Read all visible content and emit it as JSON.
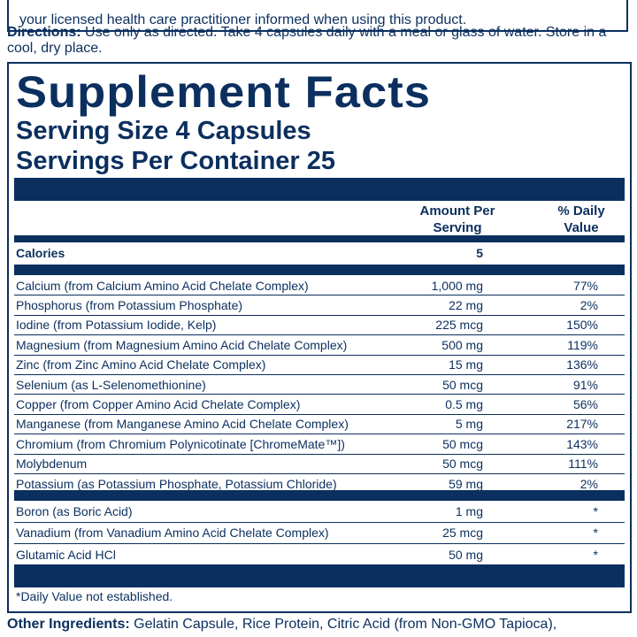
{
  "warning": "your licensed health care practitioner informed when using this product.",
  "directions": {
    "label": "Directions:",
    "text": " Use only as directed. Take 4 capsules daily with a meal or glass of water. Store in a cool, dry place."
  },
  "facts": {
    "title": "Supplement Facts",
    "serving_size": "Serving Size 4 Capsules",
    "servings_per_container": "Servings Per Container 25",
    "col_amount": "Amount Per Serving",
    "col_dv": "% Daily Value",
    "calories": {
      "name": "Calories",
      "amount": "5"
    },
    "rows": [
      {
        "name": "Calcium (from Calcium Amino Acid Chelate Complex)",
        "amount": "1,000 mg",
        "dv": "77%"
      },
      {
        "name": "Phosphorus (from Potassium Phosphate)",
        "amount": "22 mg",
        "dv": "2%"
      },
      {
        "name": "Iodine (from Potassium Iodide, Kelp)",
        "amount": "225 mcg",
        "dv": "150%"
      },
      {
        "name": "Magnesium (from Magnesium Amino Acid Chelate Complex)",
        "amount": "500 mg",
        "dv": "119%"
      },
      {
        "name": "Zinc (from Zinc Amino Acid Chelate Complex)",
        "amount": "15 mg",
        "dv": "136%"
      },
      {
        "name": "Selenium (as L-Selenomethionine)",
        "amount": "50 mcg",
        "dv": "91%"
      },
      {
        "name": "Copper (from Copper Amino Acid Chelate Complex)",
        "amount": "0.5 mg",
        "dv": "56%"
      },
      {
        "name": "Manganese (from Manganese Amino Acid Chelate Complex)",
        "amount": "5 mg",
        "dv": "217%"
      },
      {
        "name": "Chromium (from Chromium Polynicotinate [ChromeMate™])",
        "amount": "50 mcg",
        "dv": "143%"
      },
      {
        "name": "Molybdenum",
        "amount": "50 mcg",
        "dv": "111%"
      },
      {
        "name": "Potassium (as Potassium Phosphate, Potassium Chloride)",
        "amount": "59 mg",
        "dv": "2%"
      }
    ],
    "rows2": [
      {
        "name": "Boron (as Boric Acid)",
        "amount": "1 mg",
        "dv": "*"
      },
      {
        "name": "Vanadium (from Vanadium Amino Acid Chelate Complex)",
        "amount": "25 mcg",
        "dv": "*"
      },
      {
        "name": "Glutamic Acid HCl",
        "amount": "50 mg",
        "dv": "*"
      }
    ],
    "footnote": "*Daily Value not established."
  },
  "other": {
    "label": "Other Ingredients:",
    "text": " Gelatin Capsule, Rice Protein, Citric Acid (from Non-GMO Tapioca),"
  },
  "colors": {
    "navy": "#0b2f5e"
  }
}
